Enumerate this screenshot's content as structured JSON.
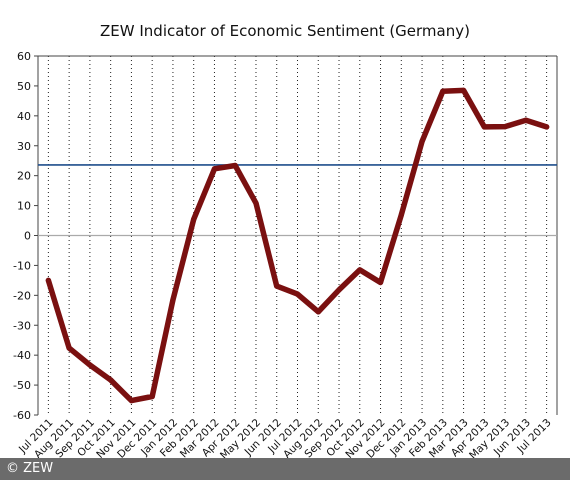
{
  "chart_data": {
    "type": "line",
    "title": "ZEW Indicator of Economic Sentiment (Germany)",
    "xlabel": "",
    "ylabel": "",
    "ylim": [
      -60,
      60
    ],
    "yticks": [
      60,
      50,
      40,
      30,
      20,
      10,
      0,
      -10,
      -20,
      -30,
      -40,
      -50,
      -60
    ],
    "grid": "vertical dotted",
    "categories": [
      "Jul 2011",
      "Aug 2011",
      "Sep 2011",
      "Oct 2011",
      "Nov 2011",
      "Dec 2011",
      "Jan 2012",
      "Feb 2012",
      "Mar 2012",
      "Apr 2012",
      "May 2012",
      "Jun 2012",
      "Jul 2012",
      "Aug 2012",
      "Sep 2012",
      "Oct 2012",
      "Nov 2012",
      "Dec 2012",
      "Jan 2013",
      "Feb 2013",
      "Mar 2013",
      "Apr 2013",
      "May 2013",
      "Jun 2013",
      "Jul 2013"
    ],
    "series": [
      {
        "values": [
          -15,
          -37.6,
          -43.3,
          -48.3,
          -55.2,
          -53.8,
          -21.6,
          5.4,
          22.3,
          23.4,
          10.8,
          -16.9,
          -19.6,
          -25.5,
          -18.2,
          -11.5,
          -15.7,
          6.9,
          31.5,
          48.2,
          48.5,
          36.3,
          36.4,
          38.5,
          36.3
        ],
        "color": "#7a1010"
      }
    ],
    "reference_line": {
      "value": 23.6,
      "color": "#1f4e8c"
    },
    "zero_line_color": "#aaaaaa"
  },
  "footer": {
    "copyright": "© ZEW"
  }
}
